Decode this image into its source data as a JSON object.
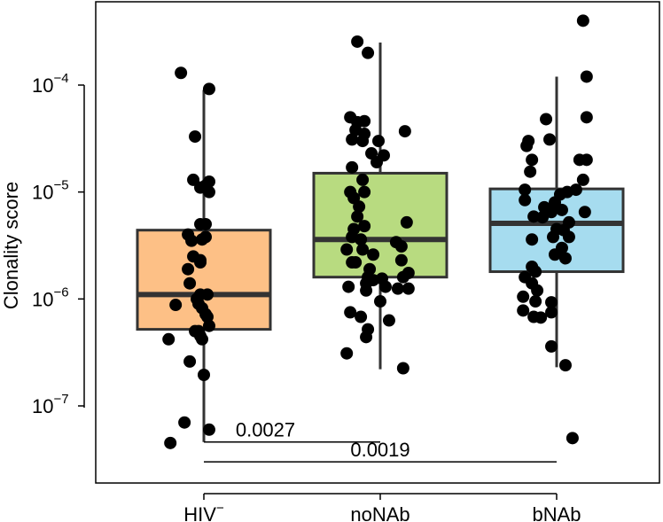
{
  "chart_data": {
    "type": "box",
    "title": "",
    "xlabel": "",
    "ylabel": "Clonality score",
    "yscale": "log10",
    "ylim": [
      2.8e-08,
      0.0007
    ],
    "yticks": [
      {
        "value": 1e-07,
        "base": "10",
        "exp": "−7"
      },
      {
        "value": 1e-06,
        "base": "10",
        "exp": "−6"
      },
      {
        "value": 1e-05,
        "base": "10",
        "exp": "−5"
      },
      {
        "value": 0.0001,
        "base": "10",
        "exp": "−4"
      }
    ],
    "categories": [
      {
        "label": "HIV",
        "sup": "−"
      },
      {
        "label": "noNAb",
        "sup": ""
      },
      {
        "label": "bNAb",
        "sup": ""
      }
    ],
    "boxes": [
      {
        "group": "HIV−",
        "color": "#FDC086",
        "whisker_low": 4.6e-08,
        "q1": 5.2e-07,
        "median": 1.1e-06,
        "q3": 4.4e-06,
        "whisker_high": 9e-05
      },
      {
        "group": "noNAb",
        "color": "#B8DB80",
        "whisker_low": 2.2e-07,
        "q1": 1.6e-06,
        "median": 3.6e-06,
        "q3": 1.5e-05,
        "whisker_high": 0.00025
      },
      {
        "group": "bNAb",
        "color": "#A6DCEF",
        "whisker_low": 2.3e-07,
        "q1": 1.8e-06,
        "median": 5.1e-06,
        "q3": 1.07e-05,
        "whisker_high": 0.00012
      }
    ],
    "points": [
      {
        "group": 0,
        "x": 0.87,
        "y": 0.00013
      },
      {
        "group": 0,
        "x": 1.03,
        "y": 9.2e-05
      },
      {
        "group": 0,
        "x": 0.95,
        "y": 3.3e-05
      },
      {
        "group": 0,
        "x": 0.94,
        "y": 1.3e-05
      },
      {
        "group": 0,
        "x": 1.01,
        "y": 1.15e-05
      },
      {
        "group": 0,
        "x": 1.03,
        "y": 1.25e-05
      },
      {
        "group": 0,
        "x": 0.98,
        "y": 1.1e-05
      },
      {
        "group": 0,
        "x": 1.03,
        "y": 1e-05
      },
      {
        "group": 0,
        "x": 0.98,
        "y": 5e-06
      },
      {
        "group": 0,
        "x": 1.01,
        "y": 5e-06
      },
      {
        "group": 0,
        "x": 0.91,
        "y": 4e-06
      },
      {
        "group": 0,
        "x": 0.93,
        "y": 3.5e-06
      },
      {
        "group": 0,
        "x": 0.99,
        "y": 3.6e-06
      },
      {
        "group": 0,
        "x": 1.01,
        "y": 3.8e-06
      },
      {
        "group": 0,
        "x": 0.94,
        "y": 2.5e-06
      },
      {
        "group": 0,
        "x": 0.98,
        "y": 2.3e-06
      },
      {
        "group": 0,
        "x": 0.98,
        "y": 2.2e-06
      },
      {
        "group": 0,
        "x": 0.91,
        "y": 1.9e-06
      },
      {
        "group": 0,
        "x": 0.92,
        "y": 1.4e-06
      },
      {
        "group": 0,
        "x": 0.96,
        "y": 1e-06
      },
      {
        "group": 0,
        "x": 0.98,
        "y": 1.1e-06
      },
      {
        "group": 0,
        "x": 1.02,
        "y": 1.1e-06
      },
      {
        "group": 0,
        "x": 0.97,
        "y": 9e-07
      },
      {
        "group": 0,
        "x": 0.84,
        "y": 8.8e-07
      },
      {
        "group": 0,
        "x": 0.99,
        "y": 8.2e-07
      },
      {
        "group": 0,
        "x": 1.01,
        "y": 7.2e-07
      },
      {
        "group": 0,
        "x": 1.02,
        "y": 6.8e-07
      },
      {
        "group": 0,
        "x": 1.03,
        "y": 5.6e-07
      },
      {
        "group": 0,
        "x": 0.95,
        "y": 5e-07
      },
      {
        "group": 0,
        "x": 0.97,
        "y": 5e-07
      },
      {
        "group": 0,
        "x": 0.98,
        "y": 4.5e-07
      },
      {
        "group": 0,
        "x": 0.99,
        "y": 4.2e-07
      },
      {
        "group": 0,
        "x": 0.8,
        "y": 4.2e-07
      },
      {
        "group": 0,
        "x": 0.92,
        "y": 2.6e-07
      },
      {
        "group": 0,
        "x": 1.0,
        "y": 1.95e-07
      },
      {
        "group": 0,
        "x": 0.89,
        "y": 7e-08
      },
      {
        "group": 0,
        "x": 1.03,
        "y": 6e-08
      },
      {
        "group": 0,
        "x": 0.81,
        "y": 4.5e-08
      },
      {
        "group": 1,
        "x": 1.87,
        "y": 0.000255
      },
      {
        "group": 1,
        "x": 1.93,
        "y": 0.0002
      },
      {
        "group": 1,
        "x": 1.83,
        "y": 5e-05
      },
      {
        "group": 1,
        "x": 1.87,
        "y": 4.5e-05
      },
      {
        "group": 1,
        "x": 1.91,
        "y": 4.6e-05
      },
      {
        "group": 1,
        "x": 1.86,
        "y": 3.8e-05
      },
      {
        "group": 1,
        "x": 1.91,
        "y": 3.5e-05
      },
      {
        "group": 1,
        "x": 2.14,
        "y": 3.7e-05
      },
      {
        "group": 1,
        "x": 1.84,
        "y": 3.1e-05
      },
      {
        "group": 1,
        "x": 1.9,
        "y": 3e-05
      },
      {
        "group": 1,
        "x": 1.99,
        "y": 3e-05
      },
      {
        "group": 1,
        "x": 1.95,
        "y": 2.3e-05
      },
      {
        "group": 1,
        "x": 2.02,
        "y": 2.2e-05
      },
      {
        "group": 1,
        "x": 1.98,
        "y": 1.9e-05
      },
      {
        "group": 1,
        "x": 1.84,
        "y": 1.7e-05
      },
      {
        "group": 1,
        "x": 1.9,
        "y": 1.3e-05
      },
      {
        "group": 1,
        "x": 1.83,
        "y": 1e-05
      },
      {
        "group": 1,
        "x": 1.91,
        "y": 1e-05
      },
      {
        "group": 1,
        "x": 1.85,
        "y": 8.8e-06
      },
      {
        "group": 1,
        "x": 1.88,
        "y": 7.3e-06
      },
      {
        "group": 1,
        "x": 1.87,
        "y": 5.9e-06
      },
      {
        "group": 1,
        "x": 1.85,
        "y": 4.5e-06
      },
      {
        "group": 1,
        "x": 1.91,
        "y": 4.8e-06
      },
      {
        "group": 1,
        "x": 2.15,
        "y": 5.2e-06
      },
      {
        "group": 1,
        "x": 1.84,
        "y": 3.8e-06
      },
      {
        "group": 1,
        "x": 1.89,
        "y": 3.6e-06
      },
      {
        "group": 1,
        "x": 2.09,
        "y": 3.4e-06
      },
      {
        "group": 1,
        "x": 1.81,
        "y": 2.9e-06
      },
      {
        "group": 1,
        "x": 1.9,
        "y": 2.9e-06
      },
      {
        "group": 1,
        "x": 2.12,
        "y": 3.1e-06
      },
      {
        "group": 1,
        "x": 1.96,
        "y": 2.6e-06
      },
      {
        "group": 1,
        "x": 1.84,
        "y": 2.2e-06
      },
      {
        "group": 1,
        "x": 1.86,
        "y": 2.2e-06
      },
      {
        "group": 1,
        "x": 2.12,
        "y": 2.3e-06
      },
      {
        "group": 1,
        "x": 1.94,
        "y": 1.9e-06
      },
      {
        "group": 1,
        "x": 2.16,
        "y": 1.75e-06
      },
      {
        "group": 1,
        "x": 1.96,
        "y": 1.5e-06
      },
      {
        "group": 1,
        "x": 1.92,
        "y": 1.4e-06
      },
      {
        "group": 1,
        "x": 1.93,
        "y": 1.6e-06
      },
      {
        "group": 1,
        "x": 2.01,
        "y": 1.55e-06
      },
      {
        "group": 1,
        "x": 2.13,
        "y": 1.6e-06
      },
      {
        "group": 1,
        "x": 2.03,
        "y": 1.3e-06
      },
      {
        "group": 1,
        "x": 2.1,
        "y": 1.25e-06
      },
      {
        "group": 1,
        "x": 2.16,
        "y": 1.25e-06
      },
      {
        "group": 1,
        "x": 1.92,
        "y": 1.2e-06
      },
      {
        "group": 1,
        "x": 1.82,
        "y": 1.3e-06
      },
      {
        "group": 1,
        "x": 2.0,
        "y": 9.5e-07
      },
      {
        "group": 1,
        "x": 1.83,
        "y": 7.5e-07
      },
      {
        "group": 1,
        "x": 1.89,
        "y": 6.8e-07
      },
      {
        "group": 1,
        "x": 2.05,
        "y": 6.3e-07
      },
      {
        "group": 1,
        "x": 1.93,
        "y": 5.2e-07
      },
      {
        "group": 1,
        "x": 1.92,
        "y": 4.4e-07
      },
      {
        "group": 1,
        "x": 1.81,
        "y": 3.1e-07
      },
      {
        "group": 1,
        "x": 2.13,
        "y": 2.25e-07
      },
      {
        "group": 2,
        "x": 3.15,
        "y": 0.0004
      },
      {
        "group": 2,
        "x": 3.17,
        "y": 0.00012
      },
      {
        "group": 2,
        "x": 2.94,
        "y": 4.8e-05
      },
      {
        "group": 2,
        "x": 3.17,
        "y": 5e-05
      },
      {
        "group": 2,
        "x": 2.96,
        "y": 3.1e-05
      },
      {
        "group": 2,
        "x": 2.84,
        "y": 3e-05
      },
      {
        "group": 2,
        "x": 2.83,
        "y": 2.7e-05
      },
      {
        "group": 2,
        "x": 2.86,
        "y": 2e-05
      },
      {
        "group": 2,
        "x": 3.13,
        "y": 2e-05
      },
      {
        "group": 2,
        "x": 3.17,
        "y": 2e-05
      },
      {
        "group": 2,
        "x": 2.85,
        "y": 1.55e-05
      },
      {
        "group": 2,
        "x": 3.15,
        "y": 1.3e-05
      },
      {
        "group": 2,
        "x": 2.82,
        "y": 1.05e-05
      },
      {
        "group": 2,
        "x": 3.06,
        "y": 1e-05
      },
      {
        "group": 2,
        "x": 3.11,
        "y": 1.05e-05
      },
      {
        "group": 2,
        "x": 3.02,
        "y": 9.5e-06
      },
      {
        "group": 2,
        "x": 2.82,
        "y": 8.4e-06
      },
      {
        "group": 2,
        "x": 2.99,
        "y": 8e-06
      },
      {
        "group": 2,
        "x": 2.93,
        "y": 7.2e-06
      },
      {
        "group": 2,
        "x": 2.97,
        "y": 6.5e-06
      },
      {
        "group": 2,
        "x": 3.03,
        "y": 6.8e-06
      },
      {
        "group": 2,
        "x": 3.16,
        "y": 6.5e-06
      },
      {
        "group": 2,
        "x": 2.87,
        "y": 5.9e-06
      },
      {
        "group": 2,
        "x": 2.92,
        "y": 5.8e-06
      },
      {
        "group": 2,
        "x": 3.07,
        "y": 5.2e-06
      },
      {
        "group": 2,
        "x": 3.0,
        "y": 4.5e-06
      },
      {
        "group": 2,
        "x": 3.04,
        "y": 4.4e-06
      },
      {
        "group": 2,
        "x": 2.98,
        "y": 3.8e-06
      },
      {
        "group": 2,
        "x": 3.07,
        "y": 3.8e-06
      },
      {
        "group": 2,
        "x": 2.86,
        "y": 3.6e-06
      },
      {
        "group": 2,
        "x": 3.03,
        "y": 3e-06
      },
      {
        "group": 2,
        "x": 2.99,
        "y": 2.6e-06
      },
      {
        "group": 2,
        "x": 3.05,
        "y": 2.4e-06
      },
      {
        "group": 2,
        "x": 2.86,
        "y": 2e-06
      },
      {
        "group": 2,
        "x": 2.88,
        "y": 1.8e-06
      },
      {
        "group": 2,
        "x": 2.82,
        "y": 1.6e-06
      },
      {
        "group": 2,
        "x": 2.86,
        "y": 1.4e-06
      },
      {
        "group": 2,
        "x": 2.89,
        "y": 1.2e-06
      },
      {
        "group": 2,
        "x": 2.81,
        "y": 1.05e-06
      },
      {
        "group": 2,
        "x": 2.88,
        "y": 9.5e-07
      },
      {
        "group": 2,
        "x": 2.97,
        "y": 9.3e-07
      },
      {
        "group": 2,
        "x": 2.81,
        "y": 7.8e-07
      },
      {
        "group": 2,
        "x": 2.97,
        "y": 7.5e-07
      },
      {
        "group": 2,
        "x": 2.87,
        "y": 6.8e-07
      },
      {
        "group": 2,
        "x": 2.91,
        "y": 6.7e-07
      },
      {
        "group": 2,
        "x": 2.97,
        "y": 3.6e-07
      },
      {
        "group": 2,
        "x": 3.05,
        "y": 2.4e-07
      },
      {
        "group": 2,
        "x": 3.09,
        "y": 5e-08
      }
    ],
    "comparisons": [
      {
        "from": "HIV−",
        "to": "noNAb",
        "label": "0.0027",
        "y": 4.6e-08
      },
      {
        "from": "HIV−",
        "to": "bNAb",
        "label": "0.0019",
        "y": 3e-08
      }
    ],
    "colors": {
      "axis": "#000000",
      "box_stroke": "#333333",
      "point": "#000000"
    }
  }
}
